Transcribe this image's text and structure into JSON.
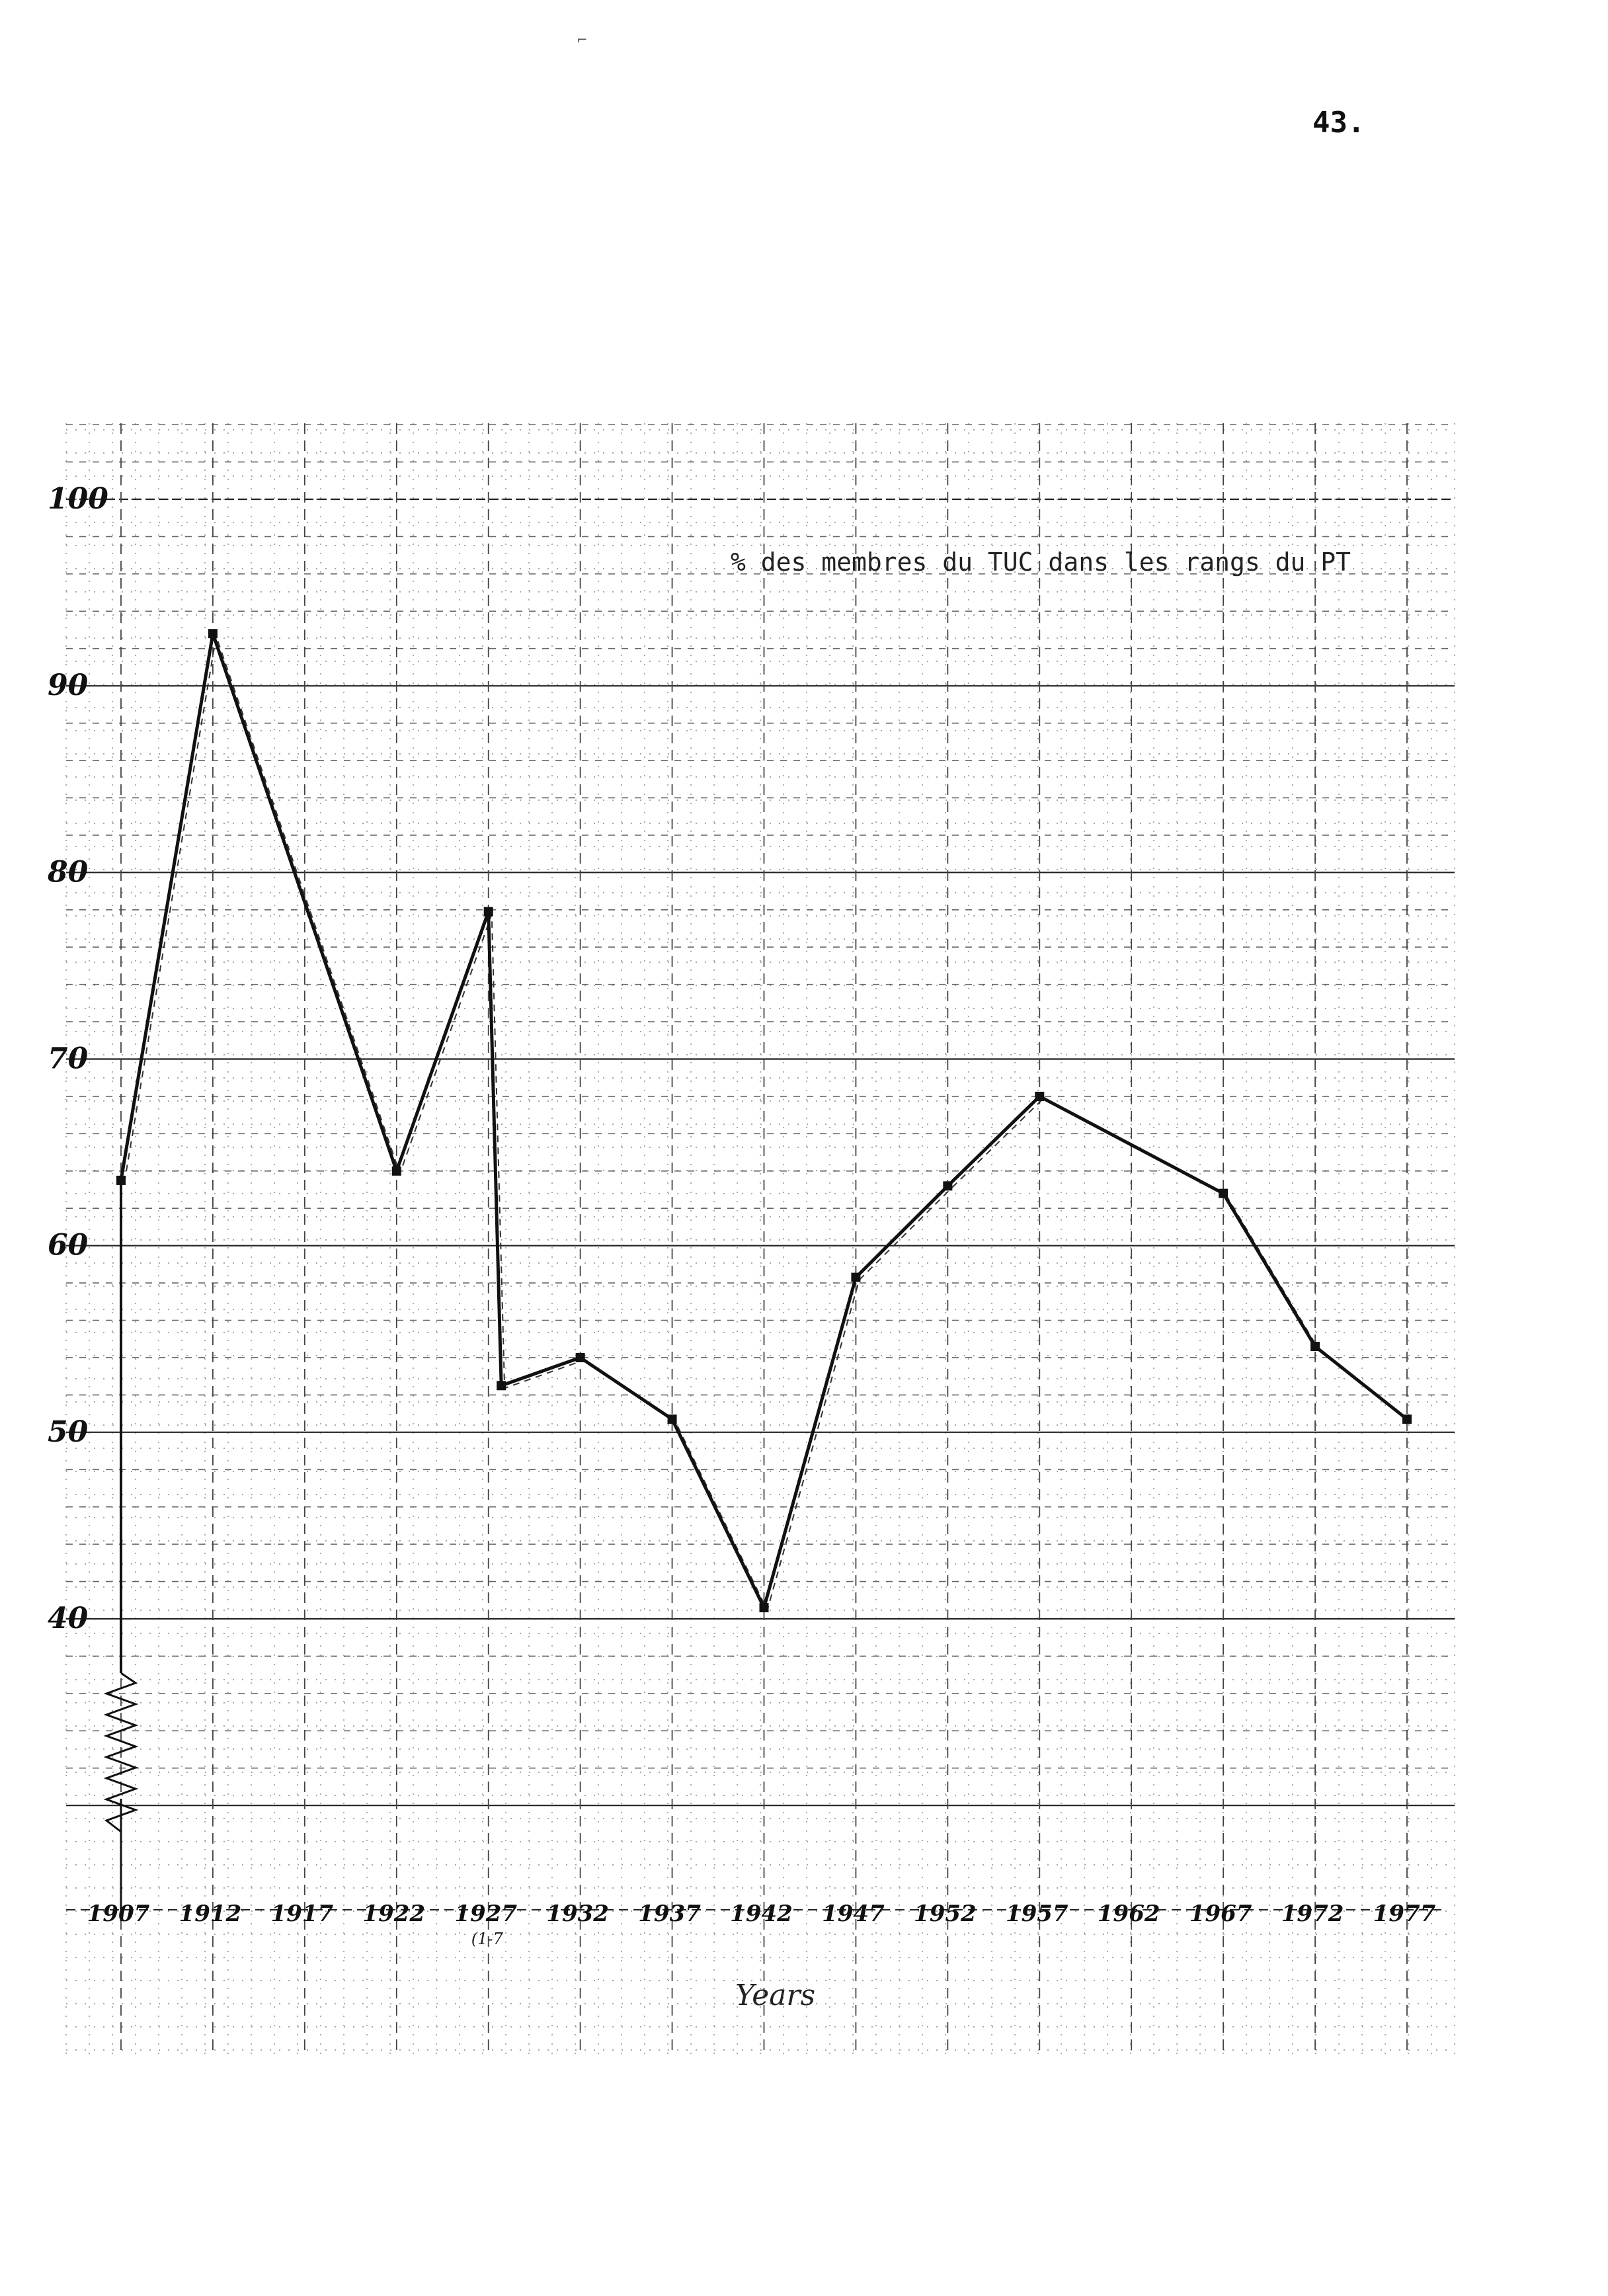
{
  "page": {
    "number": "43."
  },
  "chart_data": {
    "type": "line",
    "title": "",
    "xlabel": "Years",
    "ylabel": "",
    "series_label": "% des membres du TUC dans les rangs du PT",
    "x_ticks": [
      "1907",
      "1912",
      "1917",
      "1922",
      "1927",
      "1932",
      "1937",
      "1942",
      "1947",
      "1952",
      "1957",
      "1962",
      "1967",
      "1972",
      "1977"
    ],
    "x_tick_note": {
      "under": "1927",
      "text": "(1-7"
    },
    "y_ticks": [
      "100",
      "90",
      "80",
      "70",
      "60",
      "50",
      "40"
    ],
    "xlim": [
      1907,
      1977
    ],
    "ylim": [
      30,
      100
    ],
    "axis_break": "zigzag below 40",
    "grid": true,
    "series": [
      {
        "points": [
          {
            "x": 1907,
            "y": 63.5
          },
          {
            "x": 1912,
            "y": 92.8
          },
          {
            "x": 1922,
            "y": 64.0
          },
          {
            "x": 1927,
            "y": 77.9
          },
          {
            "x": 1927.7,
            "y": 52.5
          },
          {
            "x": 1932,
            "y": 54.0
          },
          {
            "x": 1937,
            "y": 50.7
          },
          {
            "x": 1942,
            "y": 40.6
          },
          {
            "x": 1947,
            "y": 58.3
          },
          {
            "x": 1952,
            "y": 63.2
          },
          {
            "x": 1957,
            "y": 68.0
          },
          {
            "x": 1967,
            "y": 62.8
          },
          {
            "x": 1972,
            "y": 54.6
          },
          {
            "x": 1977,
            "y": 50.7
          }
        ]
      }
    ]
  }
}
